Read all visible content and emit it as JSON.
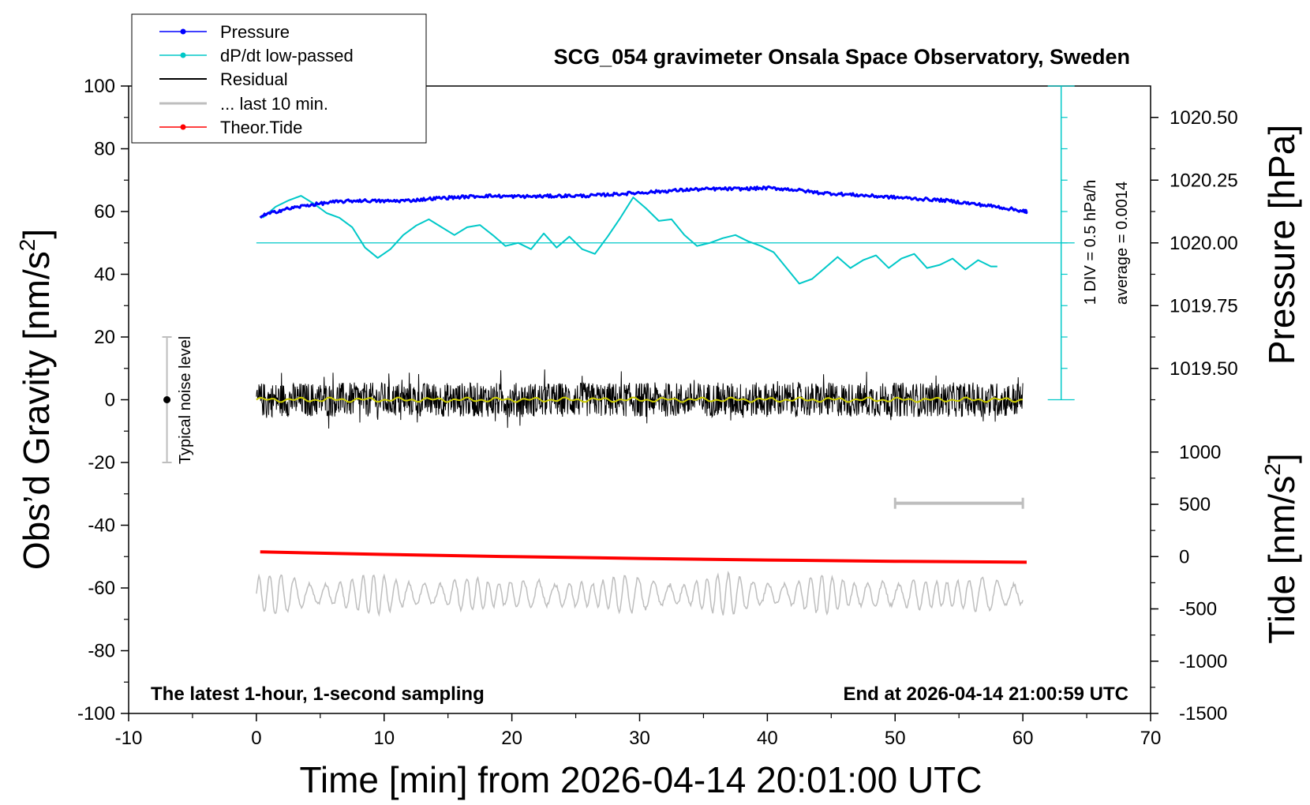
{
  "chart_data": {
    "type": "line",
    "title": "SCG_054 gravimeter Onsala Space Observatory, Sweden",
    "xlabel": "Time [min] from 2026-04-14 20:01:00 UTC",
    "ylabel_left": "Obs’d Gravity [nm/s²]",
    "ylabel_left_base": "Obs’d Gravity [nm/s",
    "ylabel_right_pressure": "Pressure [hPa]",
    "ylabel_right_tide": "Tide [nm/s²]",
    "ylabel_right_tide_base": "Tide [nm/s",
    "superscript": "2",
    "label_close": "]",
    "xlim": [
      -10,
      70
    ],
    "ylim_left": [
      -100,
      100
    ],
    "xticks": [
      "-10",
      "0",
      "10",
      "20",
      "30",
      "40",
      "50",
      "60",
      "70"
    ],
    "yticks_left": [
      "100",
      "80",
      "60",
      "40",
      "20",
      "0",
      "-20",
      "-40",
      "-60",
      "-80",
      "-100"
    ],
    "yticks_pressure": [
      "1020.50",
      "1020.25",
      "1020.00",
      "1019.75",
      "1019.50"
    ],
    "yticks_tide": [
      "1000",
      "500",
      "0",
      "-500",
      "-1000",
      "-1500"
    ],
    "pressure_tick_values": [
      1020.5,
      1020.25,
      1020.0,
      1019.75,
      1019.5
    ],
    "pressure_ref": {
      "value": 1020.0,
      "left_y": 50
    },
    "pressure_scale_per_left_unit": 0.0125,
    "tide_tick_values": [
      1000,
      500,
      0,
      -500,
      -1000,
      -1500
    ],
    "tide_ref": {
      "value": 0,
      "left_y": -50
    },
    "tide_scale_per_left_unit": 30,
    "dpdt_text": "1 DIV = 0.5 hPa/h",
    "average_text": "average = 0.0014",
    "noise_label": "Typical noise level",
    "noise_bar": {
      "x": -7,
      "y_low": -20,
      "y_high": 20,
      "center": 0
    },
    "last10_bar": {
      "x_start": 50,
      "x_end": 60,
      "y": -33
    },
    "dpdt_axis": {
      "x": 63,
      "y_low": 0,
      "y_high": 100,
      "tick_step": 10,
      "zero_line": 50
    },
    "footer_left": "The latest 1-hour, 1-second sampling",
    "footer_right": "End at 2026-04-14 21:00:59 UTC",
    "legend": [
      {
        "label": "Pressure",
        "color": "#0000ff",
        "marker": true
      },
      {
        "label": "dP/dt low-passed",
        "color": "#00c8c8",
        "marker": true
      },
      {
        "label": "Residual",
        "color": "#000000",
        "marker": false
      },
      {
        "label": "... last 10 min.",
        "color": "#bebebe",
        "marker": false
      },
      {
        "label": "Theor.Tide",
        "color": "#ff0000",
        "marker": true
      }
    ],
    "series": [
      {
        "name": "Pressure",
        "color": "#0000ff",
        "x": [
          0.3,
          2,
          4,
          6,
          8,
          10,
          12,
          14,
          16,
          18,
          20,
          22,
          24,
          26,
          28,
          30,
          32,
          34,
          36,
          38,
          40,
          42,
          44,
          46,
          48,
          50,
          52,
          54,
          56,
          58,
          60,
          60.3
        ],
        "y": [
          58.5,
          60.5,
          62,
          63,
          63.5,
          63.3,
          63.5,
          64.2,
          64.6,
          65,
          64.8,
          64.8,
          65,
          65,
          65.5,
          66,
          66.5,
          67,
          67.2,
          67.2,
          67.5,
          67,
          66,
          65.5,
          65,
          64.5,
          64,
          63.5,
          62.5,
          61.5,
          60.2,
          60
        ]
      },
      {
        "name": "dP/dt low-passed",
        "color": "#00c8c8",
        "x": [
          0.5,
          1.5,
          2.5,
          3.5,
          4.5,
          5.5,
          6.5,
          7.5,
          8.5,
          9.5,
          10.5,
          11.5,
          12.5,
          13.5,
          14.5,
          15.5,
          16.5,
          17.5,
          18.5,
          19.5,
          20.5,
          21.5,
          22.5,
          23.5,
          24.5,
          25.5,
          26.5,
          27.5,
          28.5,
          29.5,
          30.5,
          31.5,
          32.5,
          33.5,
          34.5,
          35.5,
          36.5,
          37.5,
          38.5,
          39.5,
          40.5,
          41.5,
          42.5,
          43.5,
          44.5,
          45.5,
          46.5,
          47.5,
          48.5,
          49.5,
          50.5,
          51.5,
          52.5,
          53.5,
          54.5,
          55.5,
          56.5,
          57.5,
          58
        ],
        "y": [
          58,
          61.5,
          63.5,
          65,
          62.5,
          59.5,
          58,
          55,
          48.5,
          45.2,
          48,
          52.5,
          55.5,
          57.5,
          55,
          52.5,
          55,
          55.7,
          52.5,
          49,
          50,
          48,
          53,
          48.5,
          52,
          48,
          46.5,
          52,
          58,
          64.5,
          61,
          57,
          57.5,
          52.5,
          49,
          50,
          51.5,
          52.5,
          50.5,
          49,
          47,
          42,
          37,
          38.5,
          42,
          45.5,
          42,
          44.5,
          46,
          42,
          45,
          46.5,
          42,
          43,
          45,
          41.5,
          44.5,
          42.5,
          42.5
        ]
      },
      {
        "name": "Residual",
        "color": "#000000",
        "x_range": [
          0,
          60
        ],
        "center": 0,
        "amplitude": 5.5
      },
      {
        "name": "Residual smoothed",
        "color": "#cccc00",
        "x_range": [
          0,
          60
        ],
        "center": 0,
        "amplitude": 0.8
      },
      {
        "name": "... last 10 min.",
        "color": "#bebebe",
        "x_range": [
          0,
          60
        ],
        "center": -62,
        "amplitude": 6.5
      },
      {
        "name": "Theor.Tide",
        "color": "#ff0000",
        "x": [
          0.3,
          10,
          20,
          30,
          40,
          50,
          60.3
        ],
        "y": [
          -48.5,
          -49.3,
          -50,
          -50.6,
          -51.1,
          -51.5,
          -51.8
        ]
      }
    ]
  }
}
